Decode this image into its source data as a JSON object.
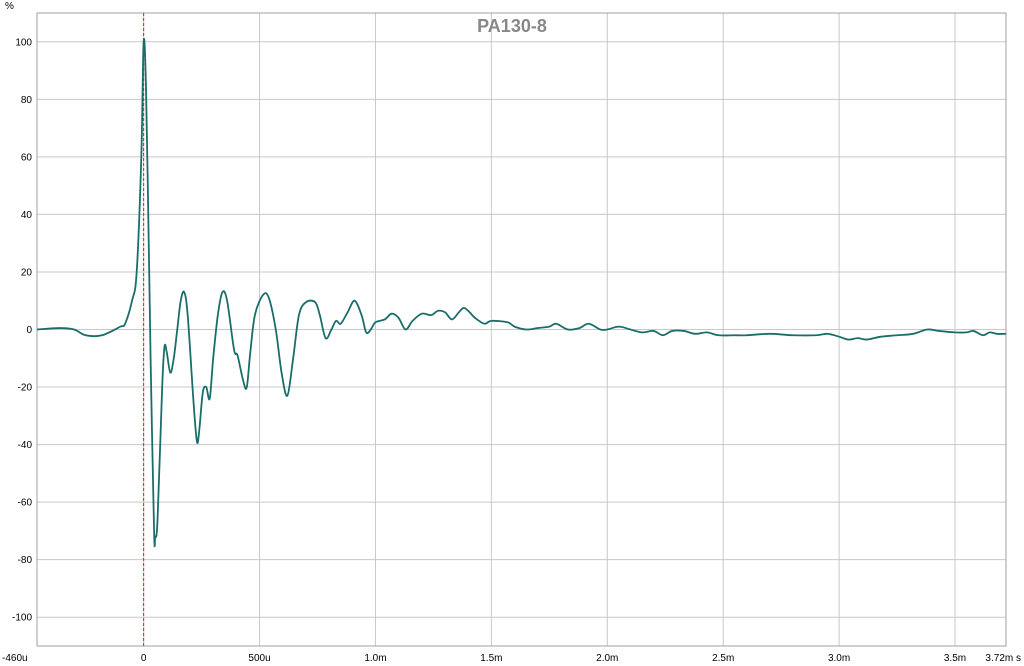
{
  "chart_data": {
    "type": "line",
    "title": "PA130-8",
    "ylabel": "%",
    "xunit": "s",
    "xlim": [
      -0.00046,
      0.00372
    ],
    "ylim": [
      -110,
      110
    ],
    "grid": true,
    "marker_x": 0,
    "x_ticks": [
      -0.00046,
      0,
      0.0005,
      0.001,
      0.0015,
      0.002,
      0.0025,
      0.003,
      0.0035,
      0.00372
    ],
    "x_tick_labels": [
      "-460u",
      "0",
      "500u",
      "1.0m",
      "1.5m",
      "2.0m",
      "2.5m",
      "3.0m",
      "3.5m",
      "3.72m s"
    ],
    "y_ticks": [
      100,
      80,
      60,
      40,
      20,
      0,
      -20,
      -40,
      -60,
      -80,
      -100
    ],
    "y_tick_labels": [
      "100",
      "80",
      "60",
      "40",
      "20",
      "0",
      "-20",
      "-40",
      "-60",
      "-80",
      "-100"
    ],
    "series": [
      {
        "color": "#1a6e6a",
        "points": [
          [
            -0.00046,
            0
          ],
          [
            -0.00036,
            0.5
          ],
          [
            -0.0003,
            0
          ],
          [
            -0.00025,
            -2
          ],
          [
            -0.00018,
            -2
          ],
          [
            -0.0001,
            1
          ],
          [
            -8e-05,
            2
          ],
          [
            -5e-05,
            10
          ],
          [
            -3e-05,
            20
          ],
          [
            -1e-05,
            60
          ],
          [
            0,
            100
          ],
          [
            1e-05,
            85
          ],
          [
            2e-05,
            40
          ],
          [
            3e-05,
            -10
          ],
          [
            4.5e-05,
            -70
          ],
          [
            5e-05,
            -72
          ],
          [
            6e-05,
            -66
          ],
          [
            8e-05,
            -20
          ],
          [
            9e-05,
            -6
          ],
          [
            0.0001,
            -8
          ],
          [
            0.000115,
            -15
          ],
          [
            0.00013,
            -10
          ],
          [
            0.000145,
            0
          ],
          [
            0.00016,
            10
          ],
          [
            0.000175,
            13
          ],
          [
            0.00019,
            5
          ],
          [
            0.000215,
            -25
          ],
          [
            0.00023,
            -39
          ],
          [
            0.00024,
            -35
          ],
          [
            0.000255,
            -22
          ],
          [
            0.00027,
            -20
          ],
          [
            0.000285,
            -24
          ],
          [
            0.0003,
            -10
          ],
          [
            0.00032,
            5
          ],
          [
            0.00034,
            13
          ],
          [
            0.00036,
            10
          ],
          [
            0.00039,
            -7
          ],
          [
            0.000405,
            -9
          ],
          [
            0.00043,
            -18
          ],
          [
            0.000445,
            -20
          ],
          [
            0.00046,
            -8
          ],
          [
            0.00048,
            5
          ],
          [
            0.000515,
            12
          ],
          [
            0.00054,
            11
          ],
          [
            0.00057,
            0
          ],
          [
            0.000595,
            -15
          ],
          [
            0.00062,
            -23
          ],
          [
            0.000645,
            -10
          ],
          [
            0.00067,
            5
          ],
          [
            0.0007,
            9.5
          ],
          [
            0.00074,
            9.5
          ],
          [
            0.00076,
            5
          ],
          [
            0.000785,
            -3
          ],
          [
            0.00081,
            0
          ],
          [
            0.00083,
            3
          ],
          [
            0.00085,
            2
          ],
          [
            0.00088,
            6
          ],
          [
            0.00091,
            10
          ],
          [
            0.00094,
            5
          ],
          [
            0.00096,
            -1
          ],
          [
            0.00098,
            0
          ],
          [
            0.001,
            2.5
          ],
          [
            0.00104,
            3.5
          ],
          [
            0.00107,
            5.5
          ],
          [
            0.0011,
            4
          ],
          [
            0.00113,
            0
          ],
          [
            0.00116,
            3
          ],
          [
            0.0012,
            5.5
          ],
          [
            0.00124,
            5
          ],
          [
            0.00127,
            6.5
          ],
          [
            0.0013,
            6
          ],
          [
            0.00133,
            3.5
          ],
          [
            0.00136,
            6
          ],
          [
            0.00138,
            7.5
          ],
          [
            0.0014,
            6.5
          ],
          [
            0.00143,
            4
          ],
          [
            0.00147,
            2
          ],
          [
            0.0015,
            3
          ],
          [
            0.00157,
            2.5
          ],
          [
            0.0016,
            1
          ],
          [
            0.00165,
            0
          ],
          [
            0.0017,
            0.5
          ],
          [
            0.00175,
            1
          ],
          [
            0.00178,
            2
          ],
          [
            0.00183,
            0
          ],
          [
            0.00188,
            0.5
          ],
          [
            0.00192,
            2
          ],
          [
            0.00197,
            0
          ],
          [
            0.002,
            0
          ],
          [
            0.00205,
            1
          ],
          [
            0.0021,
            0
          ],
          [
            0.00215,
            -1
          ],
          [
            0.0022,
            -0.5
          ],
          [
            0.00224,
            -2
          ],
          [
            0.00228,
            -0.5
          ],
          [
            0.00233,
            -0.5
          ],
          [
            0.00238,
            -1.5
          ],
          [
            0.00243,
            -1
          ],
          [
            0.00248,
            -2
          ],
          [
            0.00255,
            -2
          ],
          [
            0.0026,
            -2
          ],
          [
            0.0027,
            -1.5
          ],
          [
            0.0028,
            -2
          ],
          [
            0.0029,
            -2
          ],
          [
            0.00295,
            -1.5
          ],
          [
            0.003,
            -2.5
          ],
          [
            0.00304,
            -3.5
          ],
          [
            0.00308,
            -3
          ],
          [
            0.00312,
            -3.5
          ],
          [
            0.00318,
            -2.5
          ],
          [
            0.00325,
            -2
          ],
          [
            0.00332,
            -1.5
          ],
          [
            0.00338,
            0
          ],
          [
            0.00343,
            -0.5
          ],
          [
            0.0035,
            -1
          ],
          [
            0.00355,
            -1
          ],
          [
            0.00358,
            -0.5
          ],
          [
            0.00362,
            -2
          ],
          [
            0.00365,
            -1
          ],
          [
            0.00368,
            -1.5
          ],
          [
            0.00372,
            -1.5
          ]
        ]
      }
    ]
  }
}
